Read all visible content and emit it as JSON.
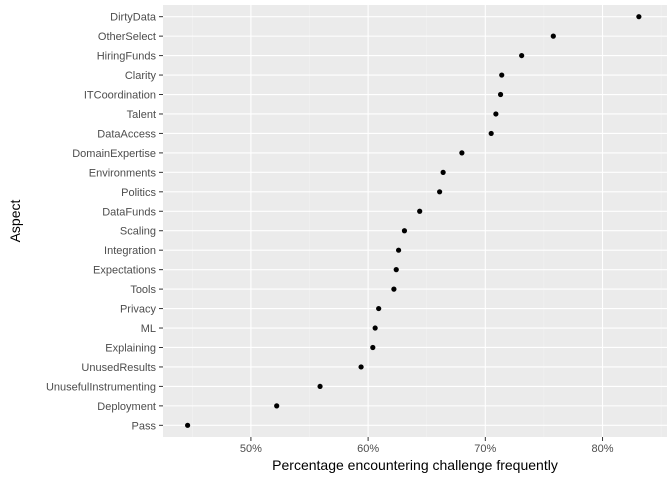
{
  "chart_data": {
    "type": "scatter",
    "xlabel": "Percentage encountering challenge frequently",
    "ylabel": "Aspect",
    "xlim": [
      42.5,
      85.5
    ],
    "x_ticks": [
      50,
      60,
      70,
      80
    ],
    "x_tick_labels": [
      "50%",
      "60%",
      "70%",
      "80%"
    ],
    "grid": true,
    "legend": "none",
    "categories": [
      "DirtyData",
      "OtherSelect",
      "HiringFunds",
      "Clarity",
      "ITCoordination",
      "Talent",
      "DataAccess",
      "DomainExpertise",
      "Environments",
      "Politics",
      "DataFunds",
      "Scaling",
      "Integration",
      "Expectations",
      "Tools",
      "Privacy",
      "ML",
      "Explaining",
      "UnusedResults",
      "UnusefulInstrumenting",
      "Deployment",
      "Pass"
    ],
    "values": [
      83.1,
      75.8,
      73.1,
      71.4,
      71.3,
      70.9,
      70.5,
      68.0,
      66.4,
      66.1,
      64.4,
      63.1,
      62.6,
      62.4,
      62.2,
      60.9,
      60.6,
      60.4,
      59.4,
      55.9,
      52.2,
      44.6
    ],
    "colors": {
      "panel": "#EBEBEB",
      "grid_major": "#FFFFFF",
      "grid_minor": "#F2F2F2",
      "point": "#000000",
      "tick_label": "#4D4D4D",
      "tick_mark": "#333333"
    }
  }
}
